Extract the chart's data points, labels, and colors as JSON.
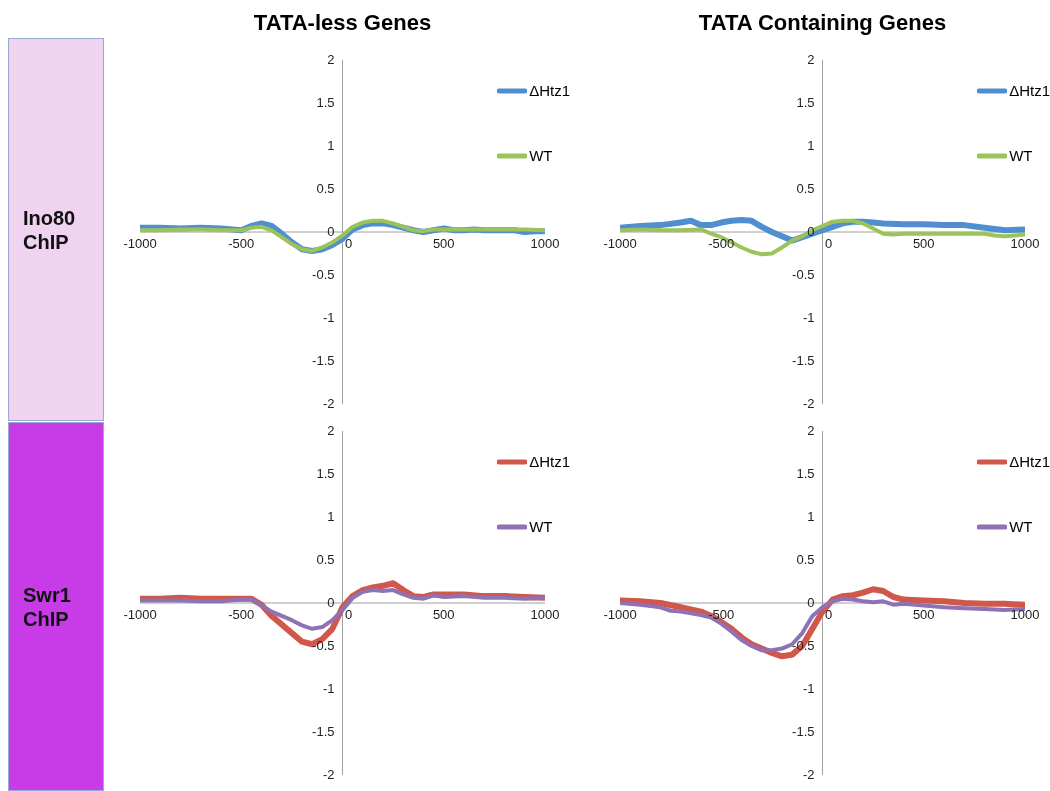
{
  "chart_data": [
    {
      "type": "line",
      "title": "TATA-less Genes",
      "ylabel": "Ino80 ChIP",
      "xlim": [
        -1000,
        1000
      ],
      "xticks": [
        -1000,
        -500,
        0,
        500,
        1000
      ],
      "ylim": [
        -2,
        2
      ],
      "yticks": [
        -2,
        -1.5,
        -1,
        -0.5,
        0,
        0.5,
        1,
        1.5,
        2
      ],
      "legend": "top right",
      "marker": "none",
      "series": [
        {
          "name": "ΔHtz1",
          "color": "#4f8fcf",
          "x": [
            -1000,
            -900,
            -800,
            -700,
            -600,
            -500,
            -450,
            -400,
            -350,
            -300,
            -250,
            -200,
            -150,
            -100,
            -50,
            0,
            50,
            100,
            150,
            200,
            250,
            300,
            350,
            400,
            450,
            500,
            550,
            600,
            650,
            700,
            750,
            800,
            850,
            900,
            950,
            1000
          ],
          "values": [
            0.05,
            0.05,
            0.04,
            0.05,
            0.04,
            0.02,
            0.07,
            0.1,
            0.07,
            -0.02,
            -0.12,
            -0.2,
            -0.22,
            -0.2,
            -0.15,
            -0.08,
            0.03,
            0.08,
            0.1,
            0.1,
            0.08,
            0.05,
            0.02,
            0,
            0.02,
            0.04,
            0.02,
            0.02,
            0.03,
            0.02,
            0.02,
            0.02,
            0.02,
            0,
            0.01,
            0.01
          ]
        },
        {
          "name": "WT",
          "color": "#9bc35a",
          "x": [
            -1000,
            -900,
            -800,
            -700,
            -600,
            -500,
            -450,
            -400,
            -350,
            -300,
            -250,
            -200,
            -150,
            -100,
            -50,
            0,
            50,
            100,
            150,
            200,
            250,
            300,
            350,
            400,
            450,
            500,
            600,
            700,
            800,
            900,
            1000
          ],
          "values": [
            0.02,
            0.02,
            0.03,
            0.03,
            0.02,
            0.02,
            0.05,
            0.06,
            0.02,
            -0.06,
            -0.14,
            -0.2,
            -0.22,
            -0.18,
            -0.12,
            -0.04,
            0.06,
            0.11,
            0.13,
            0.13,
            0.1,
            0.06,
            0.02,
            0.01,
            0.03,
            0.03,
            0.03,
            0.03,
            0.03,
            0.03,
            0.02
          ]
        }
      ]
    },
    {
      "type": "line",
      "title": "TATA Containing Genes",
      "xlim": [
        -1000,
        1000
      ],
      "xticks": [
        -1000,
        -500,
        0,
        500,
        1000
      ],
      "ylim": [
        -2,
        2
      ],
      "yticks": [
        -2,
        -1.5,
        -1,
        -0.5,
        0,
        0.5,
        1,
        1.5,
        2
      ],
      "legend": "top right",
      "marker": "none",
      "series": [
        {
          "name": "ΔHtz1",
          "color": "#4f8fcf",
          "x": [
            -1000,
            -900,
            -800,
            -700,
            -650,
            -600,
            -550,
            -500,
            -450,
            -400,
            -350,
            -300,
            -250,
            -200,
            -150,
            -100,
            -50,
            0,
            50,
            100,
            150,
            200,
            250,
            300,
            400,
            500,
            600,
            700,
            800,
            900,
            1000
          ],
          "values": [
            0.05,
            0.07,
            0.08,
            0.11,
            0.13,
            0.08,
            0.08,
            0.11,
            0.13,
            0.14,
            0.13,
            0.06,
            0,
            -0.05,
            -0.1,
            -0.06,
            -0.02,
            0.02,
            0.06,
            0.1,
            0.12,
            0.12,
            0.11,
            0.1,
            0.09,
            0.09,
            0.08,
            0.08,
            0.05,
            0.02,
            0.03
          ]
        },
        {
          "name": "WT",
          "color": "#9bc35a",
          "x": [
            -1000,
            -900,
            -800,
            -700,
            -600,
            -550,
            -500,
            -450,
            -400,
            -350,
            -300,
            -250,
            -200,
            -150,
            -100,
            -50,
            0,
            50,
            100,
            150,
            200,
            250,
            300,
            350,
            400,
            500,
            600,
            700,
            800,
            850,
            900,
            1000
          ],
          "values": [
            0.02,
            0.03,
            0.02,
            0.02,
            0.03,
            -0.02,
            -0.06,
            -0.12,
            -0.18,
            -0.23,
            -0.26,
            -0.25,
            -0.18,
            -0.1,
            -0.05,
            0.02,
            0.07,
            0.12,
            0.13,
            0.13,
            0.1,
            0.04,
            -0.02,
            -0.03,
            -0.02,
            -0.02,
            -0.02,
            -0.02,
            -0.02,
            -0.04,
            -0.05,
            -0.03
          ]
        }
      ]
    },
    {
      "type": "line",
      "ylabel": "Swr1 ChIP",
      "xlim": [
        -1000,
        1000
      ],
      "xticks": [
        -1000,
        -500,
        0,
        500,
        1000
      ],
      "ylim": [
        -2,
        2
      ],
      "yticks": [
        -2,
        -1.5,
        -1,
        -0.5,
        0,
        0.5,
        1,
        1.5,
        2
      ],
      "legend": "top right",
      "marker": "none",
      "series": [
        {
          "name": "ΔHtz1",
          "color": "#d0574a",
          "x": [
            -1000,
            -900,
            -800,
            -700,
            -600,
            -500,
            -450,
            -400,
            -350,
            -300,
            -250,
            -200,
            -150,
            -100,
            -50,
            0,
            50,
            100,
            150,
            200,
            250,
            300,
            350,
            400,
            450,
            500,
            600,
            700,
            800,
            900,
            1000
          ],
          "values": [
            0.05,
            0.05,
            0.06,
            0.05,
            0.05,
            0.05,
            0.05,
            -0.02,
            -0.15,
            -0.25,
            -0.35,
            -0.45,
            -0.48,
            -0.42,
            -0.3,
            -0.05,
            0.08,
            0.15,
            0.18,
            0.2,
            0.23,
            0.15,
            0.08,
            0.07,
            0.1,
            0.1,
            0.1,
            0.08,
            0.08,
            0.07,
            0.06
          ]
        },
        {
          "name": "WT",
          "color": "#8f72b5",
          "x": [
            -1000,
            -900,
            -800,
            -700,
            -600,
            -500,
            -450,
            -400,
            -350,
            -300,
            -250,
            -200,
            -150,
            -100,
            -50,
            0,
            50,
            100,
            150,
            200,
            250,
            300,
            350,
            400,
            450,
            500,
            600,
            700,
            800,
            900,
            1000
          ],
          "values": [
            0.03,
            0.03,
            0.03,
            0.02,
            0.02,
            0.04,
            0.04,
            -0.03,
            -0.1,
            -0.15,
            -0.2,
            -0.26,
            -0.3,
            -0.28,
            -0.2,
            -0.08,
            0.06,
            0.13,
            0.15,
            0.14,
            0.15,
            0.1,
            0.06,
            0.05,
            0.09,
            0.07,
            0.08,
            0.06,
            0.06,
            0.05,
            0.06
          ]
        }
      ]
    },
    {
      "type": "line",
      "xlim": [
        -1000,
        1000
      ],
      "xticks": [
        -1000,
        -500,
        0,
        500,
        1000
      ],
      "ylim": [
        -2,
        2
      ],
      "yticks": [
        -2,
        -1.5,
        -1,
        -0.5,
        0,
        0.5,
        1,
        1.5,
        2
      ],
      "legend": "top right",
      "marker": "none",
      "series": [
        {
          "name": "ΔHtz1",
          "color": "#d0574a",
          "x": [
            -1000,
            -900,
            -800,
            -700,
            -600,
            -550,
            -500,
            -450,
            -400,
            -350,
            -300,
            -250,
            -200,
            -150,
            -100,
            -50,
            0,
            50,
            100,
            150,
            200,
            250,
            300,
            350,
            400,
            500,
            600,
            700,
            800,
            900,
            1000
          ],
          "values": [
            0.03,
            0.02,
            0,
            -0.05,
            -0.1,
            -0.15,
            -0.22,
            -0.3,
            -0.4,
            -0.48,
            -0.53,
            -0.58,
            -0.62,
            -0.6,
            -0.5,
            -0.3,
            -0.1,
            0.04,
            0.08,
            0.09,
            0.12,
            0.16,
            0.14,
            0.07,
            0.04,
            0.03,
            0.02,
            0,
            -0.01,
            -0.01,
            -0.02
          ]
        },
        {
          "name": "WT",
          "color": "#8f72b5",
          "x": [
            -1000,
            -900,
            -800,
            -750,
            -700,
            -600,
            -550,
            -500,
            -450,
            -400,
            -350,
            -300,
            -250,
            -200,
            -150,
            -100,
            -50,
            0,
            50,
            100,
            150,
            200,
            250,
            300,
            350,
            400,
            500,
            600,
            700,
            800,
            900,
            1000
          ],
          "values": [
            0,
            -0.02,
            -0.05,
            -0.09,
            -0.1,
            -0.14,
            -0.17,
            -0.24,
            -0.33,
            -0.43,
            -0.5,
            -0.55,
            -0.55,
            -0.53,
            -0.48,
            -0.35,
            -0.15,
            -0.05,
            0.02,
            0.05,
            0.04,
            0.02,
            0.01,
            0.02,
            -0.02,
            -0.01,
            -0.03,
            -0.05,
            -0.06,
            -0.07,
            -0.08,
            -0.07
          ]
        }
      ]
    }
  ]
}
